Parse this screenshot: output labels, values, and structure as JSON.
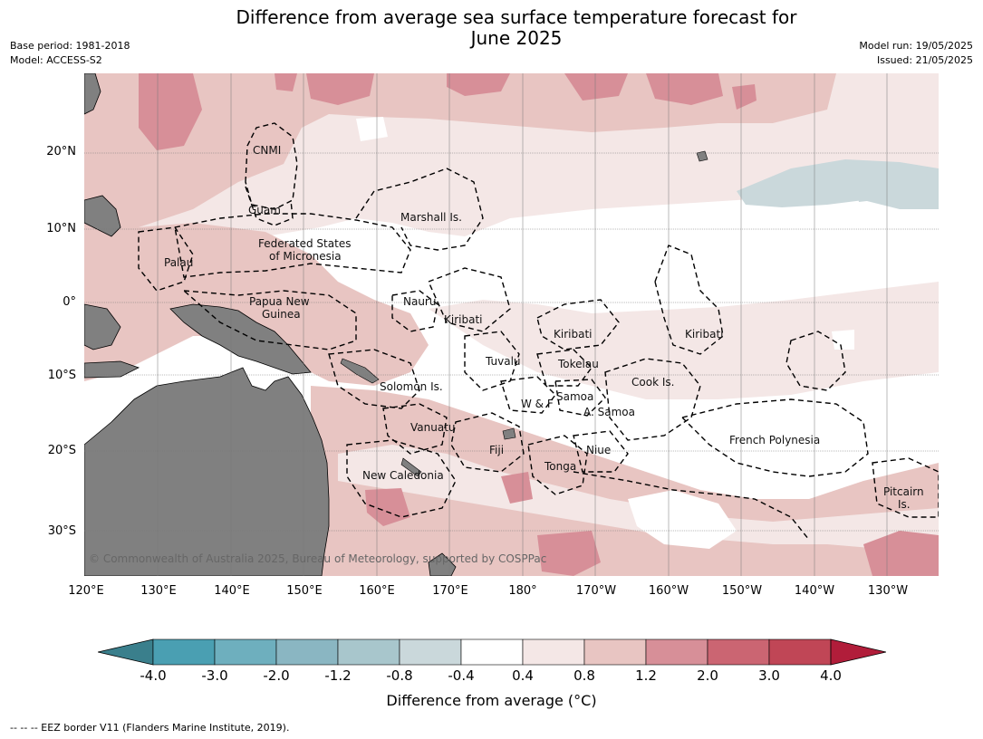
{
  "title": "Difference from average sea surface temperature forecast for June 2025",
  "title_line1": "Difference from average sea surface temperature forecast for",
  "title_line2": "June 2025",
  "base_period": "Base period: 1981-2018",
  "model": "Model: ACCESS-S2",
  "model_run": "Model run: 19/05/2025",
  "issued": "Issued: 21/05/2025",
  "lat_ticks": [
    "20°N",
    "10°N",
    "0°",
    "10°S",
    "20°S",
    "30°S"
  ],
  "lon_ticks": [
    "120°E",
    "130°E",
    "140°E",
    "150°E",
    "160°E",
    "170°E",
    "180°",
    "170°W",
    "160°W",
    "150°W",
    "140°W",
    "130°W"
  ],
  "place_labels": [
    {
      "text": "CNMI"
    },
    {
      "text": "Guam"
    },
    {
      "text": "Marshall Is."
    },
    {
      "text": "Federated States"
    },
    {
      "text": "of Micronesia"
    },
    {
      "text": "Palau"
    },
    {
      "text": "Papua New"
    },
    {
      "text": "Guinea"
    },
    {
      "text": "Nauru"
    },
    {
      "text": "Kiribati"
    },
    {
      "text": "Kiribati"
    },
    {
      "text": "Kiribati"
    },
    {
      "text": "Tuvalu"
    },
    {
      "text": "Tokelau"
    },
    {
      "text": "Cook Is."
    },
    {
      "text": "Solomon Is."
    },
    {
      "text": "Samoa"
    },
    {
      "text": "W & F"
    },
    {
      "text": "A. Samoa"
    },
    {
      "text": "Vanuatu"
    },
    {
      "text": "Fiji"
    },
    {
      "text": "Niue"
    },
    {
      "text": "French Polynesia"
    },
    {
      "text": "Tonga"
    },
    {
      "text": "New Caledonia"
    },
    {
      "text": "Pitcairn"
    },
    {
      "text": "Is."
    }
  ],
  "copyright": "© Commonwealth of Australia 2025, Bureau of Meteorology, supported by COSPPac",
  "colorbar": {
    "title": "Difference from average (°C)",
    "tick_labels": [
      "-4.0",
      "-3.0",
      "-2.0",
      "-1.2",
      "-0.8",
      "-0.4",
      "0.4",
      "0.8",
      "1.2",
      "2.0",
      "3.0",
      "4.0"
    ],
    "colors": [
      "#3a7f8c",
      "#4a9fb2",
      "#6eafbe",
      "#8ab6c2",
      "#a8c6cc",
      "#cad8db",
      "#ffffff",
      "#f4e7e6",
      "#e8c5c2",
      "#d78f98",
      "#cb6572",
      "#c04656",
      "#b11d3a"
    ]
  },
  "legend_note": "--  --  -- EEZ border V11 (Flanders Marine Institute, 2019).",
  "colors": {
    "land": "#808080",
    "anom_0_4_to_0_8": "#f4e7e6",
    "anom_0_8_to_1_2": "#e8c5c2",
    "anom_1_2_to_2_0": "#d78f98",
    "anom_minus_0_8_to_minus_0_4": "#cad8db"
  }
}
